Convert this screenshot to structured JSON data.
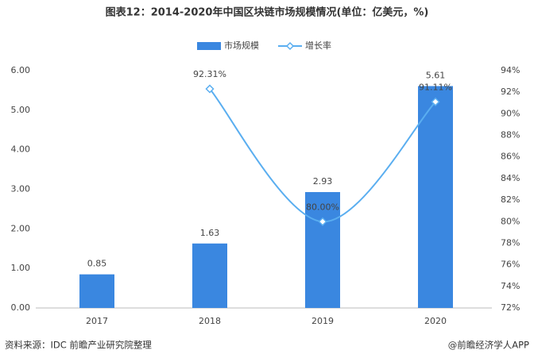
{
  "chart_data": {
    "type": "bar_line",
    "title": "图表12：2014-2020年中国区块链市场规模情况(单位：亿美元，%)",
    "categories": [
      "2017",
      "2018",
      "2019",
      "2020"
    ],
    "series": [
      {
        "name": "市场规模",
        "type": "bar",
        "color": "#3a87e0",
        "values": [
          0.85,
          1.63,
          2.93,
          5.61
        ]
      },
      {
        "name": "增长率",
        "type": "line",
        "axis": "y2",
        "color": "#5aaef0",
        "values": [
          null,
          92.31,
          80.0,
          91.11
        ],
        "value_labels": [
          null,
          "92.31%",
          "80.00%",
          "91.11%"
        ]
      }
    ],
    "ylim": [
      0,
      6
    ],
    "yticks": [
      {
        "value": 0,
        "label": "0.00"
      },
      {
        "value": 1,
        "label": "1.00"
      },
      {
        "value": 2,
        "label": "2.00"
      },
      {
        "value": 3,
        "label": "3.00"
      },
      {
        "value": 4,
        "label": "4.00"
      },
      {
        "value": 5,
        "label": "5.00"
      },
      {
        "value": 6,
        "label": "6.00"
      }
    ],
    "y2lim": [
      72,
      94
    ],
    "y2ticks": [
      {
        "value": 72,
        "label": "72%"
      },
      {
        "value": 74,
        "label": "74%"
      },
      {
        "value": 76,
        "label": "76%"
      },
      {
        "value": 78,
        "label": "78%"
      },
      {
        "value": 80,
        "label": "80%"
      },
      {
        "value": 82,
        "label": "82%"
      },
      {
        "value": 84,
        "label": "84%"
      },
      {
        "value": 86,
        "label": "86%"
      },
      {
        "value": 88,
        "label": "88%"
      },
      {
        "value": 90,
        "label": "90%"
      },
      {
        "value": 92,
        "label": "92%"
      },
      {
        "value": 94,
        "label": "94%"
      }
    ],
    "grid": false,
    "legend": "top",
    "source": "资料来源：IDC 前瞻产业研究院整理",
    "credit": "@前瞻经济学人APP"
  }
}
